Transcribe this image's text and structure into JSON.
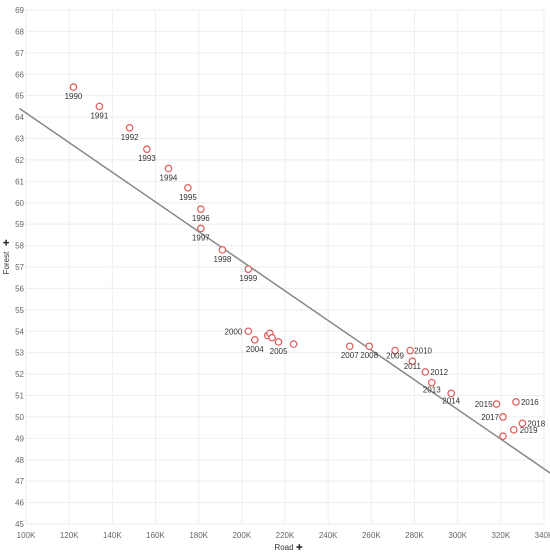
{
  "chart_data": {
    "type": "scatter",
    "xlabel": "Road",
    "ylabel": "Forest",
    "xlim": [
      100000,
      340000
    ],
    "ylim": [
      45,
      69
    ],
    "x_ticks": [
      {
        "value": 100000,
        "label": "100K"
      },
      {
        "value": 120000,
        "label": "120K"
      },
      {
        "value": 140000,
        "label": "140K"
      },
      {
        "value": 160000,
        "label": "160K"
      },
      {
        "value": 180000,
        "label": "180K"
      },
      {
        "value": 200000,
        "label": "200K"
      },
      {
        "value": 220000,
        "label": "220K"
      },
      {
        "value": 240000,
        "label": "240K"
      },
      {
        "value": 260000,
        "label": "260K"
      },
      {
        "value": 280000,
        "label": "280K"
      },
      {
        "value": 300000,
        "label": "300K"
      },
      {
        "value": 320000,
        "label": "320K"
      },
      {
        "value": 340000,
        "label": "340K"
      }
    ],
    "y_ticks": [
      45,
      46,
      47,
      48,
      49,
      50,
      51,
      52,
      53,
      54,
      55,
      56,
      57,
      58,
      59,
      60,
      61,
      62,
      63,
      64,
      65,
      66,
      67,
      68,
      69
    ],
    "grid": true,
    "trend_line": {
      "x_start": 97000,
      "y_start": 64.4,
      "x_end": 344000,
      "y_end": 47.3
    },
    "marker_color": "#e05a5a",
    "trend_color": "#888888",
    "points": [
      {
        "label": "1990",
        "x": 122000,
        "y": 65.4
      },
      {
        "label": "1991",
        "x": 134000,
        "y": 64.5
      },
      {
        "label": "1992",
        "x": 148000,
        "y": 63.5
      },
      {
        "label": "1993",
        "x": 156000,
        "y": 62.5
      },
      {
        "label": "1994",
        "x": 166000,
        "y": 61.6
      },
      {
        "label": "1995",
        "x": 175000,
        "y": 60.7
      },
      {
        "label": "1996",
        "x": 181000,
        "y": 59.7
      },
      {
        "label": "1997",
        "x": 181000,
        "y": 58.8
      },
      {
        "label": "1998",
        "x": 191000,
        "y": 57.8
      },
      {
        "label": "1999",
        "x": 203000,
        "y": 56.9
      },
      {
        "label": "2000",
        "x": 203000,
        "y": 54.0
      },
      {
        "label": "2004",
        "x": 206000,
        "y": 53.6
      },
      {
        "label": "",
        "x": 212000,
        "y": 53.8
      },
      {
        "label": "",
        "x": 213000,
        "y": 53.9
      },
      {
        "label": "",
        "x": 214000,
        "y": 53.7
      },
      {
        "label": "2005",
        "x": 217000,
        "y": 53.5
      },
      {
        "label": "",
        "x": 224000,
        "y": 53.4
      },
      {
        "label": "2007",
        "x": 250000,
        "y": 53.3
      },
      {
        "label": "2008",
        "x": 259000,
        "y": 53.3
      },
      {
        "label": "2009",
        "x": 271000,
        "y": 53.1
      },
      {
        "label": "2010",
        "x": 278000,
        "y": 53.1
      },
      {
        "label": "2011",
        "x": 279000,
        "y": 52.6
      },
      {
        "label": "2012",
        "x": 285000,
        "y": 52.1
      },
      {
        "label": "2013",
        "x": 288000,
        "y": 51.6
      },
      {
        "label": "2014",
        "x": 297000,
        "y": 51.1
      },
      {
        "label": "2015",
        "x": 318000,
        "y": 50.6
      },
      {
        "label": "2016",
        "x": 327000,
        "y": 50.7
      },
      {
        "label": "2017",
        "x": 321000,
        "y": 50.0
      },
      {
        "label": "2018",
        "x": 330000,
        "y": 49.7
      },
      {
        "label": "2019",
        "x": 326000,
        "y": 49.4
      },
      {
        "label": "",
        "x": 321000,
        "y": 49.1
      }
    ]
  }
}
